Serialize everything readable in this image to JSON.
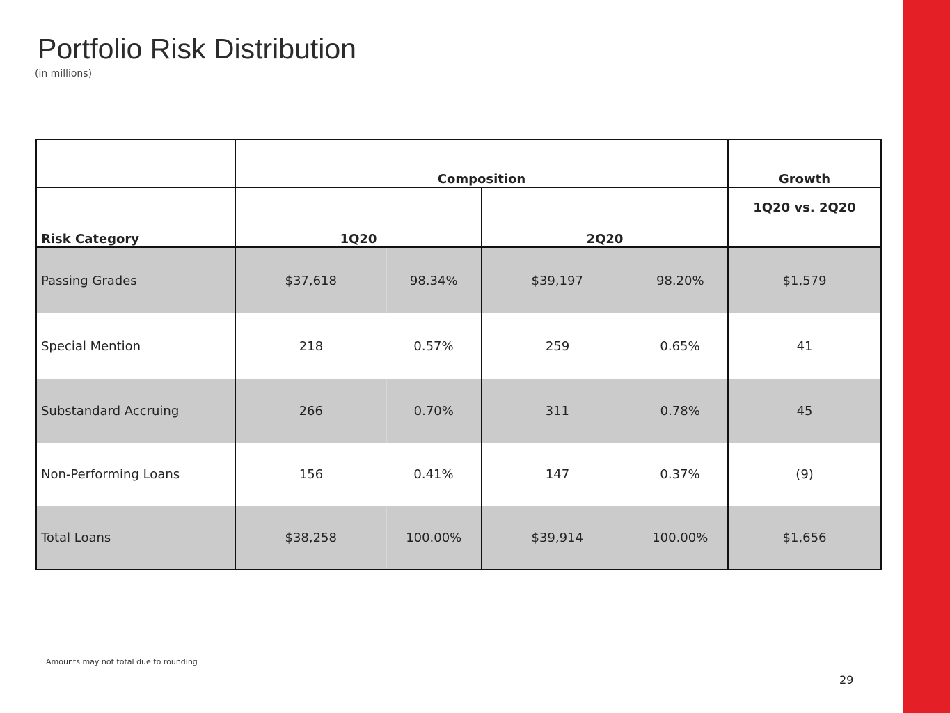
{
  "slide": {
    "title": "Portfolio Risk Distribution",
    "subtitle": "(in millions)",
    "footnote": "Amounts may not total due to rounding",
    "page_number": "29",
    "accent_color": "#e51f26",
    "row_shade_color": "#cbcbcb"
  },
  "table": {
    "header_composition": "Composition",
    "header_growth": "Growth",
    "header_risk_category": "Risk Category",
    "header_1q20": "1Q20",
    "header_2q20": "2Q20",
    "header_growth_sub": "1Q20 vs. 2Q20",
    "rows": [
      {
        "category": "Passing Grades",
        "q1_amount": "$37,618",
        "q1_pct": "98.34%",
        "q2_amount": "$39,197",
        "q2_pct": "98.20%",
        "growth": "$1,579"
      },
      {
        "category": "Special Mention",
        "q1_amount": "218",
        "q1_pct": "0.57%",
        "q2_amount": "259",
        "q2_pct": "0.65%",
        "growth": "41"
      },
      {
        "category": "Substandard Accruing",
        "q1_amount": "266",
        "q1_pct": "0.70%",
        "q2_amount": "311",
        "q2_pct": "0.78%",
        "growth": "45"
      },
      {
        "category": "Non-Performing Loans",
        "q1_amount": "156",
        "q1_pct": "0.41%",
        "q2_amount": "147",
        "q2_pct": "0.37%",
        "growth": "(9)"
      },
      {
        "category": "Total Loans",
        "q1_amount": "$38,258",
        "q1_pct": "100.00%",
        "q2_amount": "$39,914",
        "q2_pct": "100.00%",
        "growth": "$1,656"
      }
    ]
  }
}
